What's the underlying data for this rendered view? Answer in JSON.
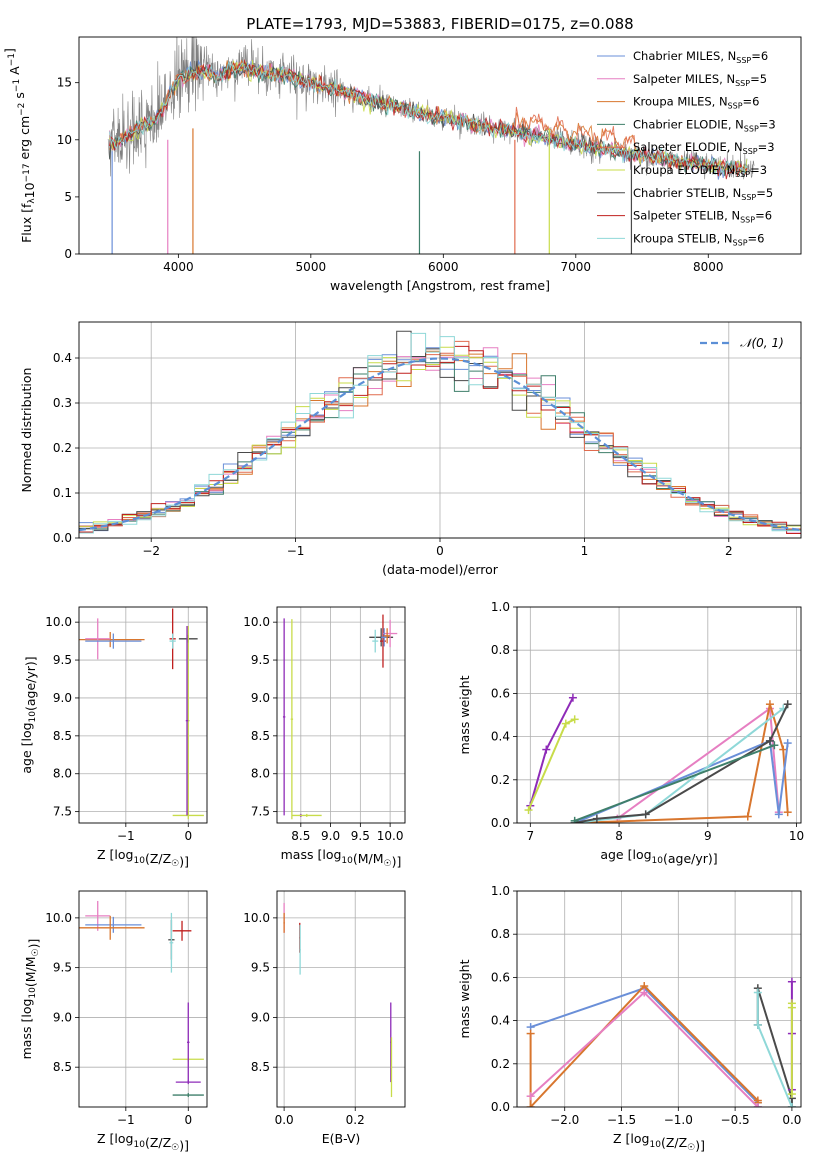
{
  "figure": {
    "title": "PLATE=1793, MJD=53883, FIBERID=0175, z=0.088"
  },
  "models": [
    {
      "name": "Chabrier MILES",
      "nssp": "6",
      "color": "#6a8fd8"
    },
    {
      "name": "Salpeter MILES",
      "nssp": "5",
      "color": "#e67fc2"
    },
    {
      "name": "Kroupa MILES",
      "nssp": "6",
      "color": "#d8762e"
    },
    {
      "name": "Chabrier ELODIE",
      "nssp": "3",
      "color": "#3f7f6a"
    },
    {
      "name": "Salpeter ELODIE",
      "nssp": "3",
      "color": "#e06b4e"
    },
    {
      "name": "Kroupa ELODIE",
      "nssp": "3",
      "color": "#c8dc4a"
    },
    {
      "name": "Chabrier STELIB",
      "nssp": "5",
      "color": "#4a4a4a"
    },
    {
      "name": "Salpeter STELIB",
      "nssp": "6",
      "color": "#c0201f"
    },
    {
      "name": "Kroupa STELIB",
      "nssp": "6",
      "color": "#8fd8d8"
    }
  ],
  "chart_data": [
    {
      "id": "spectrum",
      "type": "line",
      "xlabel": "wavelength [Angstrom, rest frame]",
      "ylabel": "Flux [f_λ10^-17 erg cm^-2 s^-1 A^-1]",
      "xlim": [
        3250,
        8700
      ],
      "ylim": [
        0,
        19
      ],
      "xticks": [
        4000,
        5000,
        6000,
        7000,
        8000
      ],
      "yticks": [
        0,
        5,
        10,
        15
      ],
      "grid": false,
      "legend": "top-right",
      "observed_color": "#808080",
      "continuum_x": [
        3500,
        3600,
        3700,
        3800,
        3900,
        4000,
        4100,
        4200,
        4300,
        4400,
        4500,
        4600,
        4700,
        4800,
        4900,
        5000,
        5200,
        5400,
        5600,
        5800,
        6000,
        6200,
        6400,
        6600,
        6800,
        7000,
        7200,
        7400,
        7600,
        7800,
        8000,
        8200,
        8300
      ],
      "continuum_y": [
        9.5,
        10.2,
        11.0,
        11.5,
        13.0,
        15.5,
        15.8,
        16.0,
        15.6,
        16.2,
        16.3,
        16.0,
        15.8,
        15.7,
        15.4,
        15.0,
        14.4,
        13.6,
        13.0,
        12.4,
        11.9,
        11.4,
        11.0,
        10.6,
        10.2,
        9.6,
        9.2,
        8.8,
        8.5,
        8.1,
        7.8,
        7.5,
        7.4
      ],
      "absorption_x": [
        3500,
        3920,
        4110,
        5820,
        6540,
        6800,
        7420
      ]
    },
    {
      "id": "residuals",
      "type": "histogram",
      "xlabel": "(data-model)/error",
      "ylabel": "Normed distribution",
      "xlim": [
        -2.5,
        2.5
      ],
      "ylim": [
        0,
        0.48
      ],
      "xticks": [
        -2,
        -1,
        0,
        1,
        2
      ],
      "yticks": [
        0.0,
        0.1,
        0.2,
        0.3,
        0.4
      ],
      "grid": true,
      "legend": "top-right",
      "reference_label": "𝒩(0, 1)",
      "reference_color": "#5b8fd6",
      "bin_width": 0.1
    },
    {
      "id": "age-vs-z",
      "type": "scatter",
      "xlabel": "Z [log10(Z/Z☉)]",
      "ylabel": "age [log10(age/yr)]",
      "xlim": [
        -1.75,
        0.3
      ],
      "ylim": [
        7.35,
        10.2
      ],
      "xticks": [
        -1,
        0
      ],
      "yticks": [
        7.5,
        8.0,
        8.5,
        9.0,
        9.5,
        10.0
      ],
      "grid": true,
      "errorbars": [
        {
          "x": -1.25,
          "y": 9.77,
          "xerr": 0.55,
          "yerr": 0.1,
          "color": "#d8762e"
        },
        {
          "x": -1.45,
          "y": 9.78,
          "xerr": 0.2,
          "yerr": 0.27,
          "color": "#e67fc2"
        },
        {
          "x": -1.2,
          "y": 9.75,
          "xerr": 0.45,
          "yerr": 0.1,
          "color": "#6a8fd8"
        },
        {
          "x": -0.25,
          "y": 9.78,
          "xerr": 0.05,
          "yerr": 0.4,
          "color": "#c0201f"
        },
        {
          "x": -0.25,
          "y": 9.75,
          "xerr": 0.05,
          "yerr": 0.1,
          "color": "#8fd8d8"
        },
        {
          "x": 0.0,
          "y": 9.78,
          "xerr": 0.15,
          "yerr": 0.05,
          "color": "#4a4a4a"
        },
        {
          "x": 0.0,
          "y": 7.45,
          "xerr": 0.25,
          "yerr": 0.05,
          "color": "#c8dc4a"
        },
        {
          "x": 0.0,
          "y": 8.7,
          "xerr": 0.02,
          "yerr": 1.25,
          "color": "#c8dc4a"
        },
        {
          "x": -0.02,
          "y": 8.7,
          "xerr": 0.02,
          "yerr": 1.25,
          "color": "#8e2bb8"
        }
      ]
    },
    {
      "id": "age-vs-mass",
      "type": "scatter",
      "xlabel": "mass [log10(M/M☉)]",
      "ylabel": "",
      "xlim": [
        8.1,
        10.25
      ],
      "ylim": [
        7.35,
        10.2
      ],
      "xticks": [
        8.5,
        9.0,
        9.5,
        10.0
      ],
      "yticks": [
        7.5,
        8.0,
        8.5,
        9.0,
        9.5,
        10.0
      ],
      "grid": true,
      "errorbars": [
        {
          "x": 8.22,
          "y": 8.75,
          "xerr": 0.02,
          "yerr": 1.3,
          "color": "#8e2bb8"
        },
        {
          "x": 8.5,
          "y": 7.45,
          "xerr": 0.02,
          "yerr": 0.02,
          "color": "#8e2bb8"
        },
        {
          "x": 8.35,
          "y": 8.72,
          "xerr": 0.02,
          "yerr": 1.32,
          "color": "#c8dc4a"
        },
        {
          "x": 8.6,
          "y": 7.45,
          "xerr": 0.25,
          "yerr": 0.02,
          "color": "#c8dc4a"
        },
        {
          "x": 9.85,
          "y": 9.8,
          "xerr": 0.2,
          "yerr": 0.12,
          "color": "#4a4a4a"
        },
        {
          "x": 9.88,
          "y": 9.75,
          "xerr": 0.05,
          "yerr": 0.35,
          "color": "#c0201f"
        },
        {
          "x": 9.75,
          "y": 9.75,
          "xerr": 0.05,
          "yerr": 0.15,
          "color": "#8fd8d8"
        },
        {
          "x": 10.0,
          "y": 9.85,
          "xerr": 0.12,
          "yerr": 0.18,
          "color": "#e67fc2"
        },
        {
          "x": 9.9,
          "y": 9.8,
          "xerr": 0.05,
          "yerr": 0.12,
          "color": "#6a8fd8"
        },
        {
          "x": 9.95,
          "y": 9.82,
          "xerr": 0.05,
          "yerr": 0.1,
          "color": "#d8762e"
        }
      ]
    },
    {
      "id": "weight-vs-age",
      "type": "line",
      "xlabel": "age [log10(age/yr)]",
      "ylabel": "mass weight",
      "xlim": [
        6.85,
        10.05
      ],
      "ylim": [
        0,
        1.0
      ],
      "xticks": [
        7,
        8,
        9,
        10
      ],
      "yticks": [
        0.0,
        0.2,
        0.4,
        0.6,
        0.8,
        1.0
      ],
      "grid": true,
      "series": [
        {
          "color": "#8e2bb8",
          "x": [
            7.0,
            7.18,
            7.48
          ],
          "y": [
            0.08,
            0.34,
            0.58
          ]
        },
        {
          "color": "#c8dc4a",
          "x": [
            6.98,
            7.4,
            7.5
          ],
          "y": [
            0.06,
            0.46,
            0.48
          ]
        },
        {
          "color": "#e67fc2",
          "x": [
            7.98,
            9.7,
            9.8
          ],
          "y": [
            0.02,
            0.53,
            0.05
          ]
        },
        {
          "color": "#d8762e",
          "x": [
            7.5,
            9.45,
            9.7,
            9.85,
            9.9
          ],
          "y": [
            0.0,
            0.03,
            0.55,
            0.34,
            0.05
          ]
        },
        {
          "color": "#6a8fd8",
          "x": [
            7.5,
            9.7,
            9.8,
            9.9
          ],
          "y": [
            0.0,
            0.38,
            0.04,
            0.37
          ]
        },
        {
          "color": "#8fd8d8",
          "x": [
            7.5,
            8.3,
            9.85
          ],
          "y": [
            0.0,
            0.04,
            0.53
          ]
        },
        {
          "color": "#4a4a4a",
          "x": [
            7.5,
            7.75,
            8.3,
            9.7,
            9.9
          ],
          "y": [
            0.0,
            0.02,
            0.04,
            0.38,
            0.55
          ]
        },
        {
          "color": "#3f7f6a",
          "x": [
            7.5,
            9.75
          ],
          "y": [
            0.01,
            0.36
          ]
        }
      ]
    },
    {
      "id": "mass-vs-z",
      "type": "scatter",
      "xlabel": "Z [log10(Z/Z☉)]",
      "ylabel": "mass [log10(M/M☉)]",
      "xlim": [
        -1.75,
        0.3
      ],
      "ylim": [
        8.1,
        10.27
      ],
      "xticks": [
        -1,
        0
      ],
      "yticks": [
        8.5,
        9.0,
        9.5,
        10.0
      ],
      "grid": true,
      "errorbars": [
        {
          "x": -1.45,
          "y": 10.02,
          "xerr": 0.2,
          "yerr": 0.15,
          "color": "#e67fc2"
        },
        {
          "x": -1.2,
          "y": 9.93,
          "xerr": 0.45,
          "yerr": 0.08,
          "color": "#6a8fd8"
        },
        {
          "x": -1.25,
          "y": 9.9,
          "xerr": 0.55,
          "yerr": 0.12,
          "color": "#d8762e"
        },
        {
          "x": -0.27,
          "y": 9.78,
          "xerr": 0.05,
          "yerr": 0.2,
          "color": "#4a4a4a"
        },
        {
          "x": -0.27,
          "y": 9.75,
          "xerr": 0.03,
          "yerr": 0.3,
          "color": "#8fd8d8"
        },
        {
          "x": -0.1,
          "y": 9.87,
          "xerr": 0.15,
          "yerr": 0.1,
          "color": "#c0201f"
        },
        {
          "x": 0.0,
          "y": 8.58,
          "xerr": 0.25,
          "yerr": 0.02,
          "color": "#c8dc4a"
        },
        {
          "x": 0.0,
          "y": 8.75,
          "xerr": 0.02,
          "yerr": 0.4,
          "color": "#8e2bb8"
        },
        {
          "x": 0.0,
          "y": 8.35,
          "xerr": 0.2,
          "yerr": 0.02,
          "color": "#8e2bb8"
        },
        {
          "x": 0.0,
          "y": 8.22,
          "xerr": 0.25,
          "yerr": 0.02,
          "color": "#3f7f6a"
        }
      ]
    },
    {
      "id": "mass-vs-ebv",
      "type": "scatter",
      "xlabel": "E(B-V)",
      "ylabel": "",
      "xlim": [
        -0.02,
        0.34
      ],
      "ylim": [
        8.1,
        10.27
      ],
      "xticks": [
        0.0,
        0.2
      ],
      "yticks": [
        8.5,
        9.0,
        9.5,
        10.0
      ],
      "grid": true,
      "errorbars": [
        {
          "x": 0.0,
          "y": 10.0,
          "xerr": 0.002,
          "yerr": 0.15,
          "color": "#e67fc2"
        },
        {
          "x": 0.0,
          "y": 9.95,
          "xerr": 0.002,
          "yerr": 0.1,
          "color": "#d8762e"
        },
        {
          "x": 0.044,
          "y": 9.8,
          "xerr": 0.002,
          "yerr": 0.15,
          "color": "#c0201f"
        },
        {
          "x": 0.045,
          "y": 9.68,
          "xerr": 0.002,
          "yerr": 0.25,
          "color": "#8fd8d8"
        },
        {
          "x": 0.3,
          "y": 8.75,
          "xerr": 0.002,
          "yerr": 0.4,
          "color": "#8e2bb8"
        },
        {
          "x": 0.302,
          "y": 8.5,
          "xerr": 0.002,
          "yerr": 0.3,
          "color": "#c8dc4a"
        }
      ]
    },
    {
      "id": "weight-vs-z",
      "type": "line",
      "xlabel": "Z [log10(Z/Z☉)]",
      "ylabel": "mass weight",
      "xlim": [
        -2.42,
        0.08
      ],
      "ylim": [
        0,
        1.0
      ],
      "xticks": [
        -2.0,
        -1.5,
        -1.0,
        -0.5,
        0.0
      ],
      "yticks": [
        0.0,
        0.2,
        0.4,
        0.6,
        0.8,
        1.0
      ],
      "grid": true,
      "series": [
        {
          "color": "#6a8fd8",
          "x": [
            -2.3,
            -1.3,
            -0.3,
            -0.3
          ],
          "y": [
            0.37,
            0.55,
            0.02,
            0.0
          ]
        },
        {
          "color": "#d8762e",
          "x": [
            -2.3,
            -2.3,
            -1.3,
            -0.3,
            -0.3
          ],
          "y": [
            0.34,
            0.0,
            0.56,
            0.03,
            0.02
          ]
        },
        {
          "color": "#e67fc2",
          "x": [
            -2.3,
            -1.3,
            -0.3
          ],
          "y": [
            0.05,
            0.53,
            0.0
          ]
        },
        {
          "color": "#4a4a4a",
          "x": [
            -0.3,
            -0.3,
            0.0,
            0.0
          ],
          "y": [
            0.38,
            0.55,
            0.04,
            0.0
          ]
        },
        {
          "color": "#8fd8d8",
          "x": [
            -0.3,
            -0.3,
            0.0
          ],
          "y": [
            0.53,
            0.38,
            0.0
          ]
        },
        {
          "color": "#8e2bb8",
          "x": [
            0.0,
            0.0,
            0.0
          ],
          "y": [
            0.08,
            0.34,
            0.58
          ]
        },
        {
          "color": "#c8dc4a",
          "x": [
            0.0,
            0.0,
            0.0
          ],
          "y": [
            0.06,
            0.46,
            0.48
          ]
        }
      ]
    }
  ]
}
